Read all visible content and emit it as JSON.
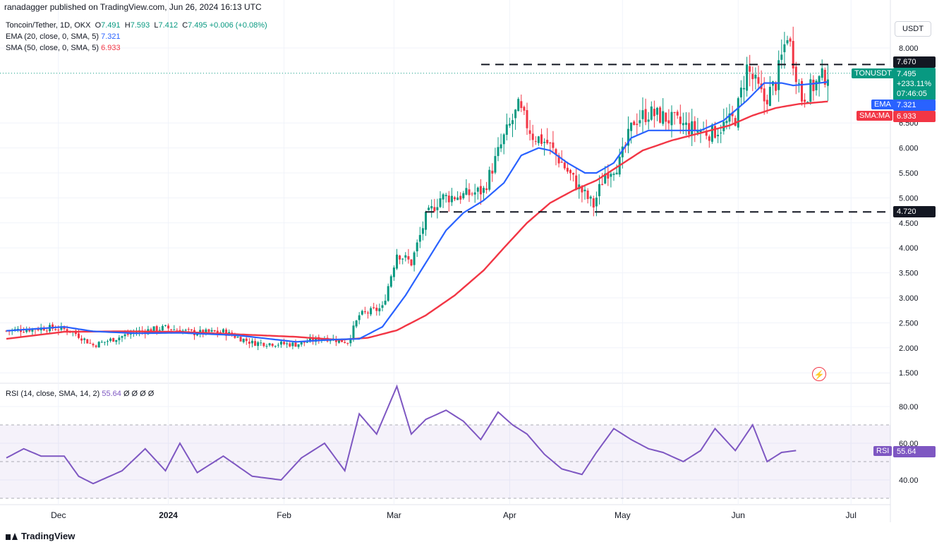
{
  "publisher": "ranadagger published on TradingView.com, Jun 26, 2024 16:13 UTC",
  "symbol_title": "Toncoin/Tether, 1D, OKX",
  "ohlc": {
    "o_label": "O",
    "o": "7.491",
    "h_label": "H",
    "h": "7.593",
    "l_label": "L",
    "l": "7.412",
    "c_label": "C",
    "c": "7.495",
    "change": "+0.006 (+0.08%)"
  },
  "indicators": [
    {
      "label": "EMA (20, close, 0, SMA, 5)",
      "value": "7.321",
      "color": "#2962ff"
    },
    {
      "label": "SMA (50, close, 0, SMA, 5)",
      "value": "6.933",
      "color": "#f23645"
    }
  ],
  "rsi_header": {
    "label": "RSI (14, close, SMA, 14, 2)",
    "value": "55.64",
    "extras": "Ø Ø Ø Ø"
  },
  "currency_button": "USDT",
  "brand": "TradingView",
  "price_labels": {
    "resistance": "7.670",
    "support": "4.720",
    "symbol_tag": "TONUSDT",
    "last_price": "7.495",
    "change_pct": "+233.11%",
    "countdown": "07:46:05",
    "ema_tag": "EMA",
    "ema_value": "7.321",
    "sma_tag": "SMA:MA",
    "sma_value": "6.933",
    "rsi_tag": "RSI",
    "rsi_value": "55.64"
  },
  "colors": {
    "up": "#089981",
    "down": "#f23645",
    "ema": "#2962ff",
    "sma": "#f23645",
    "rsi": "#7e57c2",
    "level": "#131722"
  },
  "chart_data": {
    "type": "candlestick",
    "price_axis": {
      "ticks": [
        "8.000",
        "6.500",
        "6.000",
        "5.500",
        "5.000",
        "4.500",
        "4.000",
        "3.500",
        "3.000",
        "2.500",
        "2.000",
        "1.500"
      ],
      "range": [
        1.4,
        8.6
      ]
    },
    "rsi_axis": {
      "ticks": [
        "80.00",
        "60.00",
        "40.00"
      ],
      "range": [
        30,
        92
      ],
      "bands": [
        70,
        30
      ]
    },
    "time_axis": {
      "ticks": [
        "Dec",
        "2024",
        "Feb",
        "Mar",
        "Apr",
        "May",
        "Jun",
        "Jul"
      ]
    },
    "horizontal_levels": [
      7.67,
      4.72
    ],
    "price_anchors": [
      [
        0,
        2.34
      ],
      [
        14,
        2.4
      ],
      [
        22,
        2.36
      ],
      [
        30,
        2.05
      ],
      [
        45,
        2.32
      ],
      [
        55,
        2.4
      ],
      [
        65,
        2.3
      ],
      [
        75,
        2.32
      ],
      [
        85,
        2.1
      ],
      [
        100,
        2.07
      ],
      [
        110,
        2.2
      ],
      [
        118,
        2.12
      ],
      [
        122,
        2.65
      ],
      [
        130,
        2.8
      ],
      [
        135,
        3.9
      ],
      [
        140,
        3.7
      ],
      [
        145,
        4.6
      ],
      [
        150,
        5.0
      ],
      [
        158,
        5.05
      ],
      [
        165,
        5.15
      ],
      [
        172,
        6.2
      ],
      [
        177,
        6.8
      ],
      [
        182,
        6.25
      ],
      [
        187,
        6.1
      ],
      [
        192,
        5.7
      ],
      [
        198,
        5.2
      ],
      [
        203,
        4.85
      ],
      [
        207,
        5.5
      ],
      [
        212,
        5.7
      ],
      [
        217,
        6.55
      ],
      [
        222,
        6.7
      ],
      [
        228,
        6.6
      ],
      [
        236,
        6.4
      ],
      [
        244,
        6.3
      ],
      [
        252,
        6.6
      ],
      [
        256,
        7.6
      ],
      [
        262,
        6.95
      ],
      [
        266,
        7.3
      ],
      [
        270,
        8.3
      ],
      [
        275,
        7.0
      ],
      [
        280,
        7.3
      ],
      [
        284,
        7.5
      ]
    ],
    "rsi_anchors": [
      [
        0,
        52
      ],
      [
        6,
        57
      ],
      [
        12,
        53
      ],
      [
        20,
        53
      ],
      [
        25,
        42
      ],
      [
        30,
        38
      ],
      [
        40,
        45
      ],
      [
        48,
        57
      ],
      [
        55,
        45
      ],
      [
        60,
        60
      ],
      [
        66,
        44
      ],
      [
        75,
        53
      ],
      [
        85,
        42
      ],
      [
        95,
        40
      ],
      [
        102,
        52
      ],
      [
        110,
        60
      ],
      [
        117,
        45
      ],
      [
        122,
        76
      ],
      [
        128,
        65
      ],
      [
        135,
        91
      ],
      [
        140,
        65
      ],
      [
        145,
        73
      ],
      [
        152,
        78
      ],
      [
        158,
        72
      ],
      [
        164,
        62
      ],
      [
        170,
        77
      ],
      [
        175,
        70
      ],
      [
        180,
        65
      ],
      [
        186,
        54
      ],
      [
        192,
        46
      ],
      [
        199,
        43
      ],
      [
        204,
        55
      ],
      [
        210,
        68
      ],
      [
        216,
        62
      ],
      [
        222,
        57
      ],
      [
        227,
        55
      ],
      [
        234,
        50
      ],
      [
        240,
        56
      ],
      [
        245,
        68
      ],
      [
        252,
        56
      ],
      [
        258,
        70
      ],
      [
        263,
        50
      ],
      [
        268,
        55
      ],
      [
        273,
        56
      ]
    ],
    "ema_anchors": [
      [
        0,
        2.34
      ],
      [
        20,
        2.42
      ],
      [
        30,
        2.33
      ],
      [
        45,
        2.29
      ],
      [
        60,
        2.3
      ],
      [
        80,
        2.25
      ],
      [
        100,
        2.12
      ],
      [
        115,
        2.17
      ],
      [
        122,
        2.18
      ],
      [
        130,
        2.42
      ],
      [
        138,
        3.05
      ],
      [
        145,
        3.7
      ],
      [
        152,
        4.35
      ],
      [
        158,
        4.7
      ],
      [
        165,
        4.95
      ],
      [
        172,
        5.3
      ],
      [
        178,
        5.85
      ],
      [
        184,
        6.0
      ],
      [
        188,
        5.95
      ],
      [
        194,
        5.7
      ],
      [
        200,
        5.5
      ],
      [
        204,
        5.5
      ],
      [
        210,
        5.7
      ],
      [
        216,
        6.2
      ],
      [
        222,
        6.35
      ],
      [
        230,
        6.35
      ],
      [
        240,
        6.35
      ],
      [
        248,
        6.55
      ],
      [
        256,
        6.95
      ],
      [
        262,
        7.3
      ],
      [
        268,
        7.3
      ],
      [
        272,
        7.25
      ],
      [
        278,
        7.28
      ],
      [
        284,
        7.32
      ]
    ],
    "sma_anchors": [
      [
        0,
        2.18
      ],
      [
        20,
        2.32
      ],
      [
        40,
        2.33
      ],
      [
        60,
        2.32
      ],
      [
        80,
        2.27
      ],
      [
        100,
        2.22
      ],
      [
        115,
        2.16
      ],
      [
        125,
        2.2
      ],
      [
        135,
        2.35
      ],
      [
        145,
        2.65
      ],
      [
        155,
        3.05
      ],
      [
        165,
        3.55
      ],
      [
        172,
        4.0
      ],
      [
        180,
        4.5
      ],
      [
        188,
        4.9
      ],
      [
        196,
        5.15
      ],
      [
        204,
        5.35
      ],
      [
        212,
        5.65
      ],
      [
        220,
        5.95
      ],
      [
        230,
        6.15
      ],
      [
        240,
        6.3
      ],
      [
        250,
        6.45
      ],
      [
        258,
        6.65
      ],
      [
        266,
        6.8
      ],
      [
        274,
        6.88
      ],
      [
        284,
        6.93
      ]
    ]
  }
}
